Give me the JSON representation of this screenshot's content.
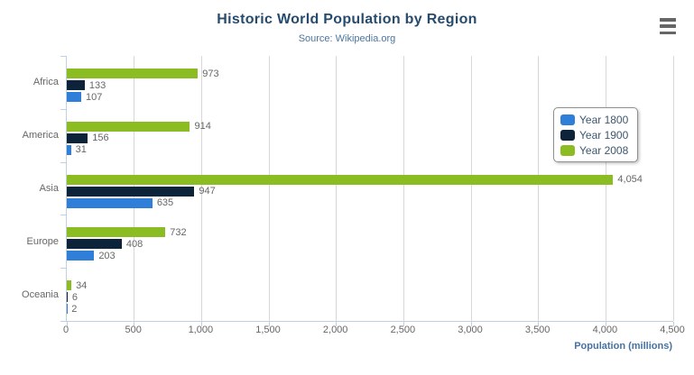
{
  "chart_data": {
    "type": "bar",
    "title": "Historic World Population by Region",
    "subtitle": "Source: Wikipedia.org",
    "categories": [
      "Africa",
      "America",
      "Asia",
      "Europe",
      "Oceania"
    ],
    "series": [
      {
        "name": "Year 1800",
        "color": "#2f7ed8",
        "values": [
          107,
          31,
          635,
          203,
          2
        ]
      },
      {
        "name": "Year 1900",
        "color": "#0d233a",
        "values": [
          133,
          156,
          947,
          408,
          6
        ]
      },
      {
        "name": "Year 2008",
        "color": "#8bbc21",
        "values": [
          973,
          914,
          4054,
          732,
          34
        ]
      }
    ],
    "series_draw_order_top_to_bottom": [
      "Year 2008",
      "Year 1900",
      "Year 1800"
    ],
    "xlabel": "Population (millions)",
    "xlim": [
      0,
      4500
    ],
    "xtick_step": 500,
    "xtick_labels": [
      "0",
      "500",
      "1,000",
      "1,500",
      "2,000",
      "2,500",
      "3,000",
      "3,500",
      "4,000",
      "4,500"
    ],
    "grid": true,
    "legend": {
      "position": "right-middle",
      "entries": [
        "Year 1800",
        "Year 1900",
        "Year 2008"
      ]
    },
    "data_labels_visible": true
  },
  "icons": {
    "context_menu": "hamburger-menu-icon"
  }
}
